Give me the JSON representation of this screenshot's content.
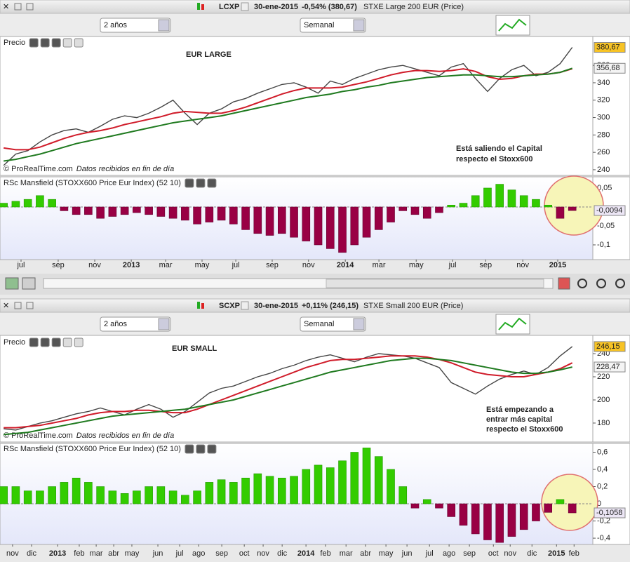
{
  "windows": [
    {
      "symbol": "LCXP",
      "date": "30-ene-2015",
      "change": "-0,54% (380,67)",
      "change_color": "#cc1f1f",
      "description": "STXE Large 200 EUR (Price)",
      "period": "2 años",
      "interval": "Semanal"
    },
    {
      "symbol": "SCXP",
      "date": "30-ene-2015",
      "change": "+0,11% (246,15)",
      "change_color": "#1e9e1e",
      "description": "STXE Small 200 EUR (Price)",
      "period": "2 años",
      "interval": "Semanal"
    }
  ],
  "chart_data": [
    {
      "type": "line",
      "title": "EUR LARGE",
      "label": "Precio",
      "source": "© ProRealTime.com",
      "note": "Datos recibidos en fin de día",
      "annotation": [
        "Está saliendo el Capital",
        "respecto el Stoxx600"
      ],
      "xlim": [
        -0.3,
        48.7
      ],
      "ylim": [
        233.5,
        393.2
      ],
      "yticks": [
        240,
        260,
        280,
        300,
        320,
        340,
        360
      ],
      "series": [
        {
          "color": "#444444",
          "label_fill": "#f7c325",
          "label_text": "#000000",
          "values": [
            245,
            258,
            262,
            272,
            280,
            285,
            287,
            283,
            290,
            298,
            302,
            300,
            305,
            312,
            320,
            305,
            292,
            305,
            310,
            318,
            322,
            328,
            333,
            338,
            340,
            335,
            328,
            342,
            338,
            345,
            350,
            355,
            358,
            360,
            356,
            352,
            348,
            358,
            362,
            345,
            330,
            345,
            355,
            360,
            348,
            352,
            362,
            380.67
          ],
          "value_labels": {
            "47": "380,67"
          }
        },
        {
          "color": "#d01c2a",
          "values": [
            265,
            263,
            263,
            266,
            271,
            276,
            280,
            283,
            285,
            288,
            292,
            295,
            298,
            301,
            305,
            307,
            306,
            305,
            305,
            308,
            312,
            317,
            322,
            327,
            331,
            334,
            334,
            334,
            335,
            338,
            341,
            345,
            349,
            352,
            354,
            354,
            353,
            354,
            356,
            353,
            347,
            344,
            345,
            348,
            350,
            350,
            352,
            356
          ]
        },
        {
          "color": "#1f7a1f",
          "label_fill": "#f4f4f4",
          "label_text": "#1f7a1f",
          "values": [
            250,
            252,
            255,
            258,
            262,
            266,
            270,
            273,
            276,
            279,
            282,
            285,
            288,
            291,
            294,
            296,
            298,
            300,
            302,
            305,
            308,
            311,
            314,
            317,
            320,
            323,
            325,
            327,
            330,
            332,
            335,
            337,
            340,
            342,
            344,
            346,
            347,
            348,
            349,
            349,
            348,
            347,
            347,
            348,
            349,
            350,
            352,
            356.68
          ],
          "value_labels": {
            "47": "356,68"
          }
        }
      ]
    },
    {
      "type": "bar",
      "label": "RSc Mansfield (STOXX600 Price Eur Index) (52 10)",
      "positive_color": "#33cc00",
      "negative_color": "#990044",
      "xlim": [
        -0.3,
        48.7
      ],
      "ylim": [
        -0.1389,
        0.0796
      ],
      "yticks": [
        {
          "value": 0.05,
          "label": "0,05"
        },
        0,
        {
          "value": -0.05,
          "label": "-0,05"
        },
        {
          "value": -0.1,
          "label": "-0,1"
        }
      ],
      "xticks": [
        {
          "value": 1.44,
          "label": "jul"
        },
        {
          "value": 4.51,
          "label": "sep"
        },
        {
          "value": 7.53,
          "label": "nov"
        },
        {
          "value": 10.55,
          "label": "2013"
        },
        {
          "value": 13.39,
          "label": "mar"
        },
        {
          "value": 16.4,
          "label": "may"
        },
        {
          "value": 19.19,
          "label": "jul"
        },
        {
          "value": 22.2,
          "label": "sep"
        },
        {
          "value": 25.2,
          "label": "nov"
        },
        {
          "value": 28.24,
          "label": "2014"
        },
        {
          "value": 31.02,
          "label": "mar"
        },
        {
          "value": 34.1,
          "label": "may"
        },
        {
          "value": 37.11,
          "label": "jul"
        },
        {
          "value": 39.84,
          "label": "sep"
        },
        {
          "value": 42.91,
          "label": "nov"
        },
        {
          "value": 45.8,
          "label": "2015"
        }
      ],
      "series": [
        {
          "label_fill": "#ece6f5",
          "label_text": "#8b1a6b",
          "values": [
            0.01,
            0.015,
            0.02,
            0.03,
            0.02,
            -0.01,
            -0.02,
            -0.02,
            -0.03,
            -0.025,
            -0.02,
            -0.015,
            -0.02,
            -0.025,
            -0.03,
            -0.035,
            -0.045,
            -0.04,
            -0.035,
            -0.045,
            -0.06,
            -0.07,
            -0.075,
            -0.07,
            -0.08,
            -0.09,
            -0.1,
            -0.11,
            -0.12,
            -0.1,
            -0.08,
            -0.06,
            -0.04,
            -0.01,
            -0.02,
            -0.03,
            -0.015,
            0.005,
            0.01,
            0.03,
            0.05,
            0.06,
            0.045,
            0.03,
            0.02,
            0.005,
            -0.03,
            -0.0094
          ],
          "value_labels": {
            "47": "-0,0094"
          }
        }
      ]
    },
    {
      "type": "line",
      "title": "EUR SMALL",
      "label": "Precio",
      "source": "© ProRealTime.com",
      "note": "Datos recibidos en fin de día",
      "annotation": [
        "Está empezando a",
        "entrar más capital",
        "respecto el Stoxx600"
      ],
      "xlim": [
        -0.3,
        48.7
      ],
      "ylim": [
        163.6,
        255.8
      ],
      "yticks": [
        180,
        200,
        220,
        240
      ],
      "series": [
        {
          "color": "#444444",
          "label_fill": "#f7c325",
          "label_text": "#000000",
          "values": [
            175,
            174,
            177,
            180,
            182,
            185,
            188,
            190,
            193,
            190,
            187,
            192,
            196,
            192,
            185,
            190,
            198,
            206,
            210,
            212,
            216,
            220,
            223,
            227,
            230,
            234,
            237,
            239,
            236,
            233,
            237,
            240,
            239,
            238,
            236,
            232,
            228,
            215,
            210,
            205,
            212,
            218,
            222,
            225,
            222,
            228,
            238,
            246.15
          ],
          "value_labels": {
            "47": "246,15"
          }
        },
        {
          "color": "#d01c2a",
          "values": [
            176,
            176,
            177,
            178,
            180,
            182,
            184,
            187,
            189,
            190,
            190,
            191,
            191,
            190,
            189,
            189,
            192,
            196,
            200,
            204,
            208,
            212,
            216,
            220,
            224,
            228,
            231,
            234,
            235,
            235,
            236,
            237,
            238,
            238,
            238,
            237,
            235,
            232,
            228,
            224,
            222,
            221,
            220,
            220,
            222,
            224,
            227,
            232
          ]
        },
        {
          "color": "#1f7a1f",
          "label_fill": "#f4f4f4",
          "label_text": "#1f7a1f",
          "values": [
            170,
            171,
            172,
            174,
            176,
            178,
            180,
            182,
            184,
            186,
            187,
            188,
            189,
            190,
            191,
            192,
            194,
            196,
            198,
            200,
            203,
            206,
            209,
            212,
            215,
            218,
            221,
            224,
            226,
            228,
            230,
            232,
            234,
            235,
            236,
            236,
            235,
            234,
            232,
            230,
            228,
            226,
            224,
            223,
            223,
            224,
            226,
            228.47
          ],
          "value_labels": {
            "47": "228,47"
          }
        }
      ]
    },
    {
      "type": "bar",
      "label": "RSc Mansfield (STOXX600 Price Eur Index) (52 10)",
      "positive_color": "#33cc00",
      "negative_color": "#990044",
      "xlim": [
        -0.3,
        48.7
      ],
      "ylim": [
        -0.473,
        0.702
      ],
      "yticks": [
        {
          "value": 0.6,
          "label": "0,6"
        },
        {
          "value": 0.4,
          "label": "0,4"
        },
        {
          "value": 0.2,
          "label": "0,2"
        },
        0,
        {
          "value": -0.2,
          "label": "-0,2"
        },
        {
          "value": -0.4,
          "label": "-0,4"
        }
      ],
      "xticks": [
        {
          "value": 0.74,
          "label": "nov"
        },
        {
          "value": 2.31,
          "label": "dic"
        },
        {
          "value": 4.46,
          "label": "2013"
        },
        {
          "value": 6.25,
          "label": "feb"
        },
        {
          "value": 7.65,
          "label": "mar"
        },
        {
          "value": 9.1,
          "label": "abr"
        },
        {
          "value": 10.6,
          "label": "may"
        },
        {
          "value": 12.75,
          "label": "jun"
        },
        {
          "value": 14.55,
          "label": "jul"
        },
        {
          "value": 16.12,
          "label": "ago"
        },
        {
          "value": 18.03,
          "label": "sep"
        },
        {
          "value": 19.89,
          "label": "oct"
        },
        {
          "value": 21.45,
          "label": "nov"
        },
        {
          "value": 23.02,
          "label": "dic"
        },
        {
          "value": 24.99,
          "label": "2014"
        },
        {
          "value": 26.61,
          "label": "feb"
        },
        {
          "value": 28.3,
          "label": "mar"
        },
        {
          "value": 29.92,
          "label": "abr"
        },
        {
          "value": 31.6,
          "label": "may"
        },
        {
          "value": 33.34,
          "label": "jun"
        },
        {
          "value": 35.2,
          "label": "jul"
        },
        {
          "value": 36.82,
          "label": "ago"
        },
        {
          "value": 38.5,
          "label": "sep"
        },
        {
          "value": 40.48,
          "label": "oct"
        },
        {
          "value": 41.87,
          "label": "nov"
        },
        {
          "value": 43.67,
          "label": "dic"
        },
        {
          "value": 45.7,
          "label": "2015"
        },
        {
          "value": 47.15,
          "label": "feb"
        }
      ],
      "series": [
        {
          "label_fill": "#ece6f5",
          "label_text": "#8b1a6b",
          "values": [
            0.2,
            0.2,
            0.15,
            0.15,
            0.2,
            0.25,
            0.3,
            0.25,
            0.2,
            0.15,
            0.12,
            0.15,
            0.2,
            0.2,
            0.15,
            0.1,
            0.15,
            0.25,
            0.28,
            0.25,
            0.3,
            0.35,
            0.32,
            0.3,
            0.32,
            0.4,
            0.45,
            0.42,
            0.5,
            0.6,
            0.65,
            0.55,
            0.4,
            0.2,
            -0.05,
            0.05,
            -0.05,
            -0.15,
            -0.25,
            -0.35,
            -0.42,
            -0.45,
            -0.38,
            -0.3,
            -0.2,
            -0.1,
            0.05,
            -0.1058
          ],
          "value_labels": {
            "47": "-0,1058"
          }
        }
      ]
    }
  ]
}
